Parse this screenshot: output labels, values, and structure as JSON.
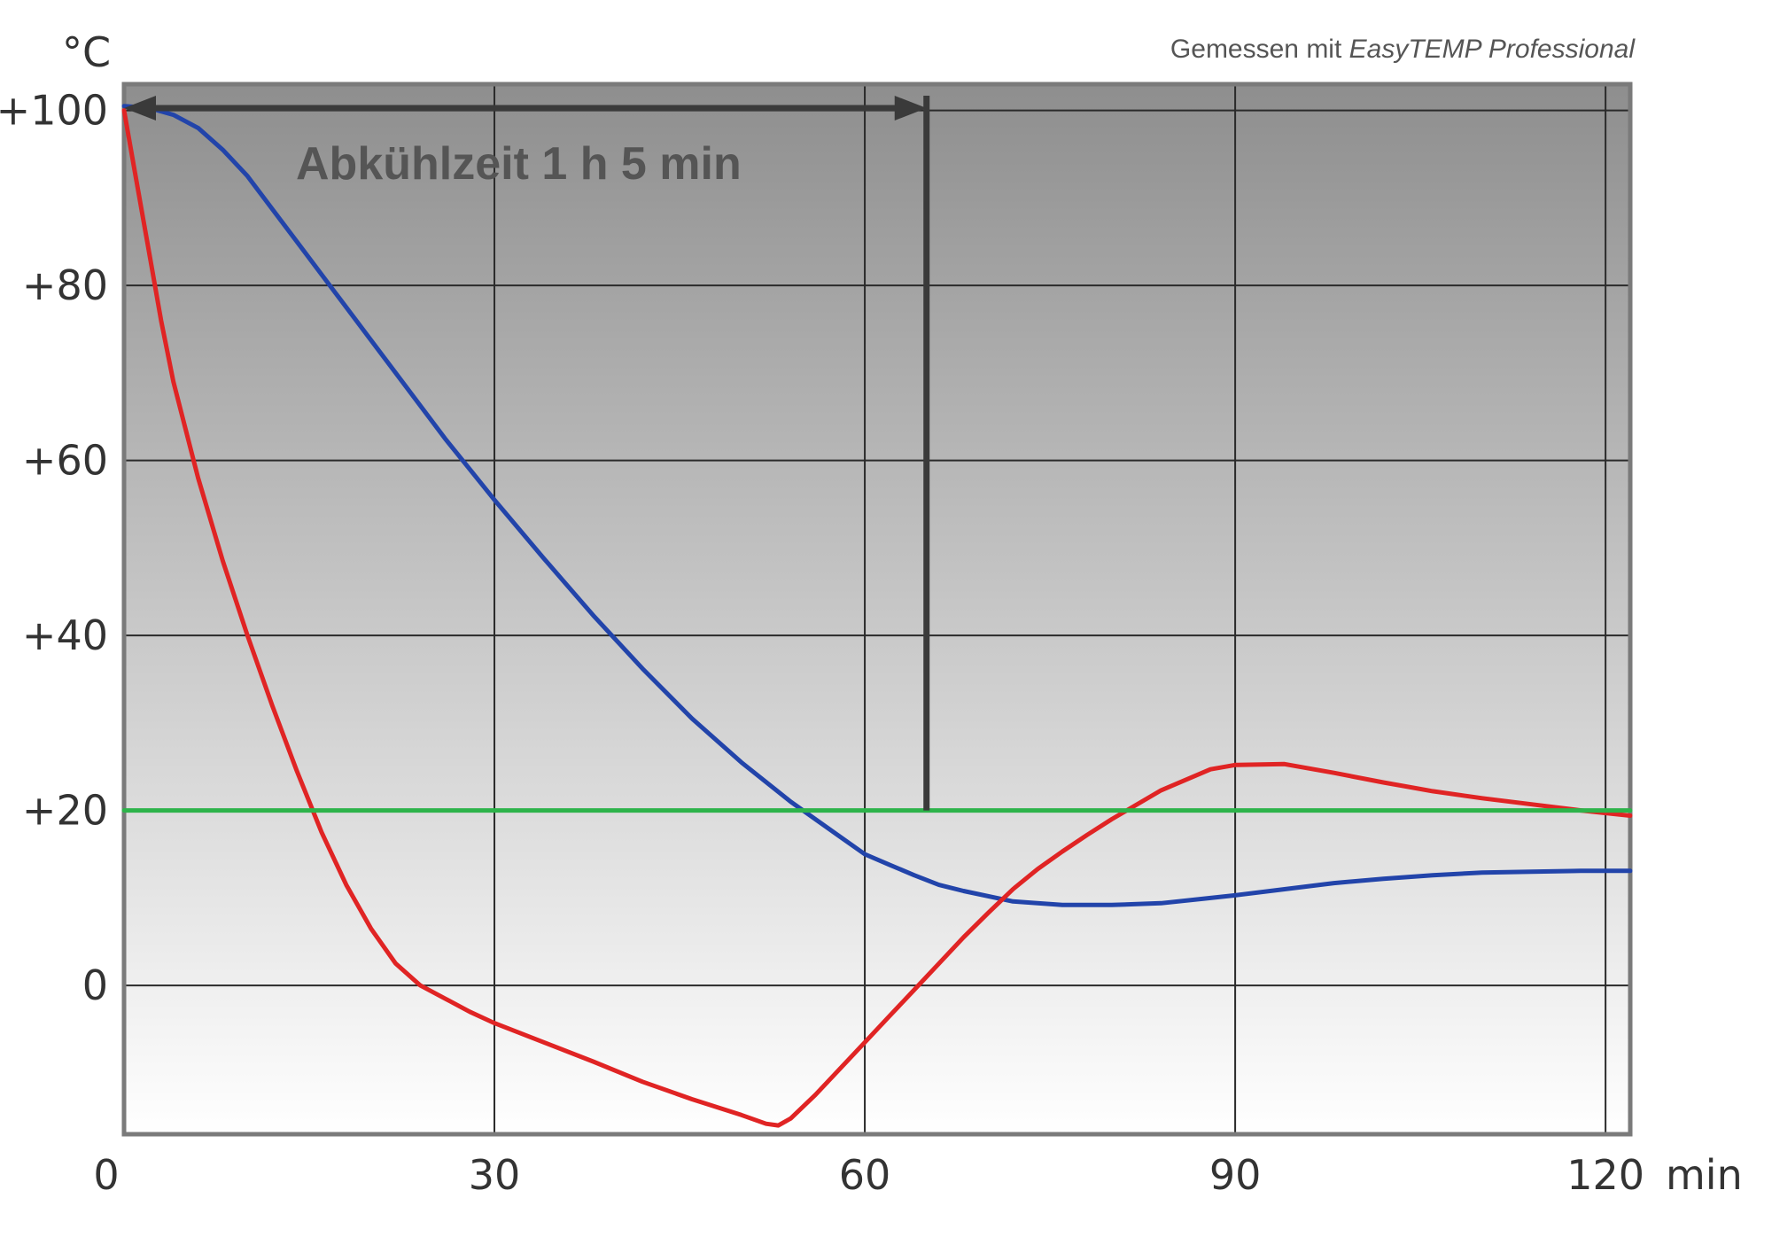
{
  "source": {
    "prefix": "Gemessen mit ",
    "product": "EasyTEMP Professional"
  },
  "chart_data": {
    "type": "line",
    "title": "",
    "xlabel": "min",
    "ylabel": "°C",
    "xlim": [
      0,
      122
    ],
    "ylim": [
      -17,
      103
    ],
    "x_ticks": [
      0,
      30,
      60,
      90,
      120
    ],
    "x_tick_labels": [
      "0",
      "30",
      "60",
      "90",
      "120"
    ],
    "y_ticks": [
      0,
      20,
      40,
      60,
      80,
      100
    ],
    "y_tick_labels": [
      "0",
      "+20",
      "+40",
      "+60",
      "+80",
      "+100"
    ],
    "grid": true,
    "annotation": {
      "text": "Abkühlzeit 1 h 5 min",
      "x_start": 0,
      "x_end": 65,
      "marker_x": 65
    },
    "colors": {
      "blue": "#2244aa",
      "red": "#e02424",
      "green": "#2db34a",
      "grid": "#2a2a2a",
      "annotation": "#3a3a3a"
    },
    "series": [
      {
        "color": "#2244aa",
        "points": [
          [
            0,
            100.5
          ],
          [
            2,
            100.3
          ],
          [
            4,
            99.5
          ],
          [
            6,
            98
          ],
          [
            8,
            95.5
          ],
          [
            10,
            92.5
          ],
          [
            14,
            85
          ],
          [
            18,
            77.5
          ],
          [
            22,
            70
          ],
          [
            26,
            62.5
          ],
          [
            30,
            55.5
          ],
          [
            34,
            48.8
          ],
          [
            38,
            42.3
          ],
          [
            42,
            36.2
          ],
          [
            46,
            30.5
          ],
          [
            50,
            25.5
          ],
          [
            54,
            21
          ],
          [
            58,
            17
          ],
          [
            60,
            15
          ],
          [
            62,
            13.8
          ],
          [
            64,
            12.6
          ],
          [
            66,
            11.5
          ],
          [
            68,
            10.8
          ],
          [
            72,
            9.6
          ],
          [
            76,
            9.2
          ],
          [
            80,
            9.2
          ],
          [
            84,
            9.4
          ],
          [
            88,
            10.0
          ],
          [
            90,
            10.3
          ],
          [
            94,
            11.0
          ],
          [
            98,
            11.7
          ],
          [
            102,
            12.2
          ],
          [
            106,
            12.6
          ],
          [
            110,
            12.9
          ],
          [
            114,
            13.0
          ],
          [
            118,
            13.1
          ],
          [
            122,
            13.1
          ]
        ]
      },
      {
        "color": "#e02424",
        "points": [
          [
            0,
            100
          ],
          [
            1,
            92
          ],
          [
            2,
            84
          ],
          [
            3,
            76
          ],
          [
            4,
            69
          ],
          [
            6,
            58
          ],
          [
            8,
            48.5
          ],
          [
            10,
            40
          ],
          [
            12,
            32
          ],
          [
            14,
            24.5
          ],
          [
            16,
            17.5
          ],
          [
            18,
            11.5
          ],
          [
            20,
            6.5
          ],
          [
            22,
            2.5
          ],
          [
            24,
            0
          ],
          [
            26,
            -1.5
          ],
          [
            28,
            -3
          ],
          [
            30,
            -4.3
          ],
          [
            34,
            -6.5
          ],
          [
            38,
            -8.7
          ],
          [
            42,
            -11
          ],
          [
            46,
            -13
          ],
          [
            50,
            -14.8
          ],
          [
            52,
            -15.8
          ],
          [
            53,
            -16
          ],
          [
            54,
            -15.2
          ],
          [
            56,
            -12.5
          ],
          [
            58,
            -9.5
          ],
          [
            60,
            -6.5
          ],
          [
            62,
            -3.5
          ],
          [
            64,
            -0.5
          ],
          [
            66,
            2.5
          ],
          [
            68,
            5.5
          ],
          [
            70,
            8.3
          ],
          [
            72,
            11
          ],
          [
            74,
            13.3
          ],
          [
            76,
            15.3
          ],
          [
            78,
            17.2
          ],
          [
            80,
            19
          ],
          [
            84,
            22.3
          ],
          [
            88,
            24.7
          ],
          [
            90,
            25.2
          ],
          [
            94,
            25.3
          ],
          [
            98,
            24.3
          ],
          [
            102,
            23.2
          ],
          [
            106,
            22.2
          ],
          [
            110,
            21.4
          ],
          [
            114,
            20.7
          ],
          [
            118,
            20
          ],
          [
            122,
            19.4
          ]
        ]
      },
      {
        "color": "#2db34a",
        "points": [
          [
            0,
            20
          ],
          [
            122,
            20
          ]
        ]
      }
    ]
  }
}
